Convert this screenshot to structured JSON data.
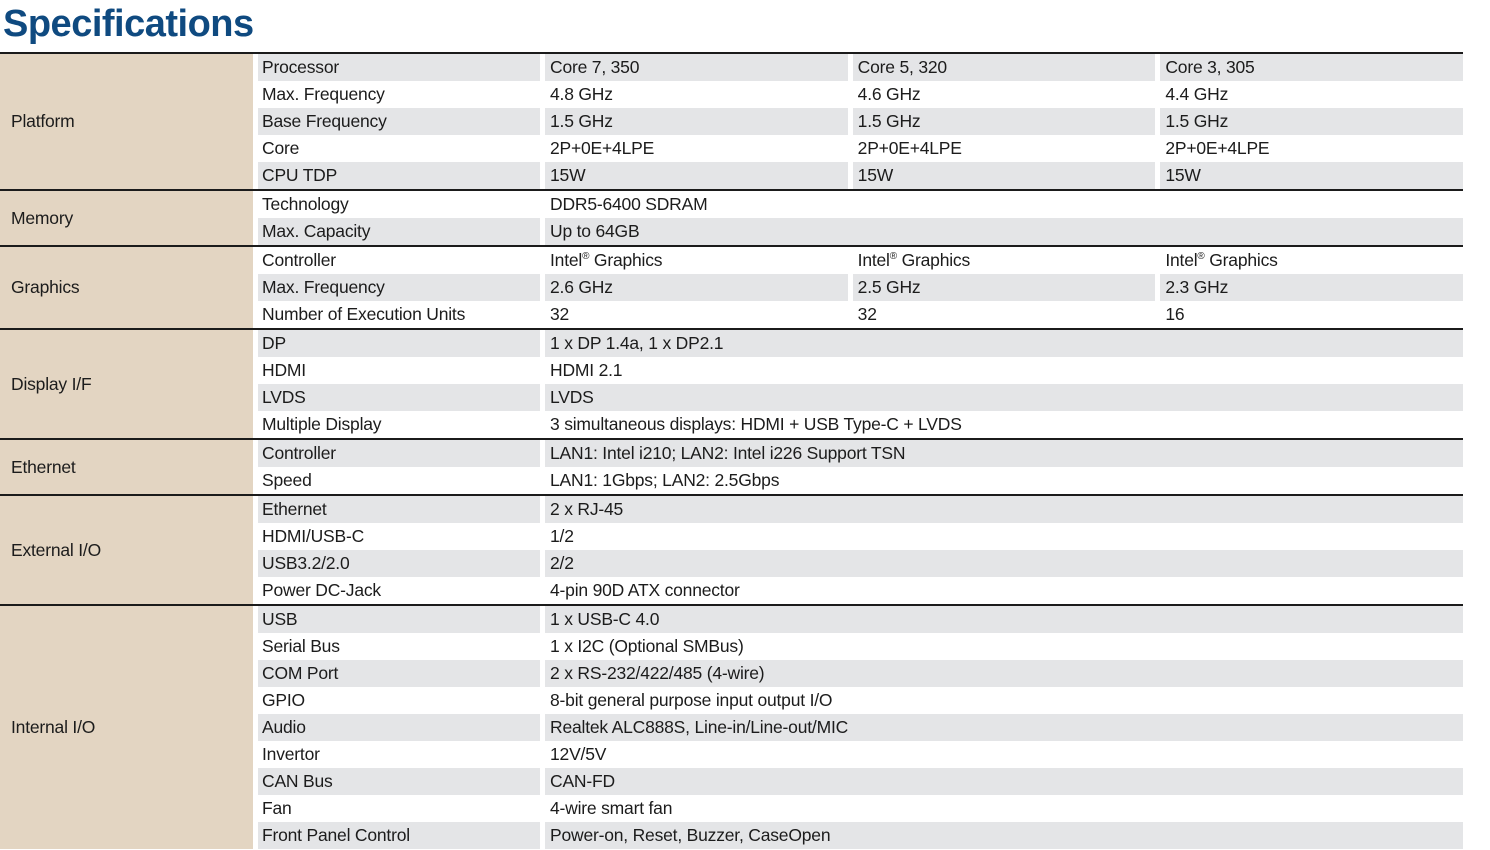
{
  "title": "Specifications",
  "colors": {
    "title_blue": "#0f4a80",
    "category_bg": "#e3d5c2",
    "row_alt_bg": "#e4e5e7",
    "row_bg": "#ffffff",
    "divider": "#1b1b1b",
    "text": "#1c1c1c"
  },
  "table": {
    "sections": [
      {
        "category": "Platform",
        "rows": [
          {
            "label": "Processor",
            "values": [
              "Core 7, 350",
              "Core 5, 320",
              "Core 3, 305"
            ]
          },
          {
            "label": "Max. Frequency",
            "values": [
              "4.8 GHz",
              "4.6 GHz",
              "4.4 GHz"
            ]
          },
          {
            "label": "Base Frequency",
            "values": [
              "1.5 GHz",
              "1.5 GHz",
              "1.5 GHz"
            ]
          },
          {
            "label": "Core",
            "values": [
              "2P+0E+4LPE",
              "2P+0E+4LPE",
              "2P+0E+4LPE"
            ]
          },
          {
            "label": "CPU TDP",
            "values": [
              "15W",
              "15W",
              "15W"
            ]
          }
        ]
      },
      {
        "category": "Memory",
        "rows": [
          {
            "label": "Technology",
            "values": [
              "DDR5-6400 SDRAM"
            ]
          },
          {
            "label": "Max. Capacity",
            "values": [
              "Up to 64GB"
            ]
          }
        ]
      },
      {
        "category": "Graphics",
        "rows": [
          {
            "label": "Controller",
            "values": [
              "Intel® Graphics",
              "Intel® Graphics",
              "Intel® Graphics"
            ]
          },
          {
            "label": "Max. Frequency",
            "values": [
              "2.6 GHz",
              "2.5 GHz",
              "2.3 GHz"
            ]
          },
          {
            "label": "Number of Execution Units",
            "values": [
              "32",
              "32",
              "16"
            ]
          }
        ]
      },
      {
        "category": "Display I/F",
        "rows": [
          {
            "label": "DP",
            "values": [
              "1 x DP 1.4a, 1 x DP2.1"
            ]
          },
          {
            "label": "HDMI",
            "values": [
              "HDMI 2.1"
            ]
          },
          {
            "label": "LVDS",
            "values": [
              "LVDS"
            ]
          },
          {
            "label": "Multiple Display",
            "values": [
              "3 simultaneous displays: HDMI + USB Type-C + LVDS"
            ]
          }
        ]
      },
      {
        "category": "Ethernet",
        "rows": [
          {
            "label": "Controller",
            "values": [
              "LAN1: Intel i210; LAN2: Intel i226 Support TSN"
            ]
          },
          {
            "label": "Speed",
            "values": [
              "LAN1: 1Gbps; LAN2: 2.5Gbps"
            ]
          }
        ]
      },
      {
        "category": "External I/O",
        "rows": [
          {
            "label": "Ethernet",
            "values": [
              "2 x RJ-45"
            ]
          },
          {
            "label": "HDMI/USB-C",
            "values": [
              "1/2"
            ]
          },
          {
            "label": "USB3.2/2.0",
            "values": [
              "2/2"
            ]
          },
          {
            "label": "Power DC-Jack",
            "values": [
              "4-pin 90D ATX connector"
            ]
          }
        ]
      },
      {
        "category": "Internal I/O",
        "rows": [
          {
            "label": "USB",
            "values": [
              "1 x USB-C 4.0"
            ]
          },
          {
            "label": "Serial Bus",
            "values": [
              "1 x I2C (Optional SMBus)"
            ]
          },
          {
            "label": "COM Port",
            "values": [
              "2 x RS-232/422/485 (4-wire)"
            ]
          },
          {
            "label": "GPIO",
            "values": [
              "8-bit general purpose input output I/O"
            ]
          },
          {
            "label": "Audio",
            "values": [
              "Realtek ALC888S, Line-in/Line-out/MIC"
            ]
          },
          {
            "label": "Invertor",
            "values": [
              "12V/5V"
            ]
          },
          {
            "label": "CAN Bus",
            "values": [
              "CAN-FD"
            ]
          },
          {
            "label": "Fan",
            "values": [
              "4-wire smart fan"
            ]
          },
          {
            "label": "Front Panel Control",
            "values": [
              "Power-on, Reset, Buzzer, CaseOpen"
            ]
          }
        ]
      }
    ]
  }
}
